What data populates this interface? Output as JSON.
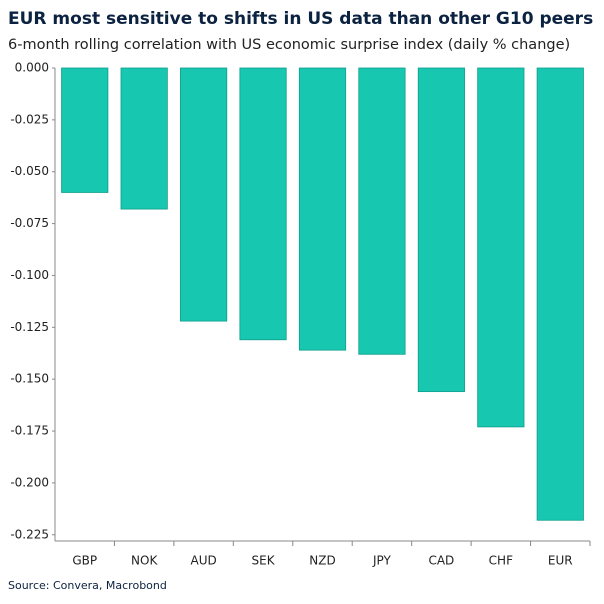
{
  "chart_data": {
    "type": "bar",
    "title": "EUR most sensitive to shifts in US data than other G10 peers",
    "subtitle": "6-month rolling correlation with US economic surprise index (daily % change)",
    "source": "Source: Convera, Macrobond",
    "categories": [
      "GBP",
      "NOK",
      "AUD",
      "SEK",
      "NZD",
      "JPY",
      "CAD",
      "CHF",
      "EUR"
    ],
    "values": [
      -0.06,
      -0.068,
      -0.122,
      -0.131,
      -0.136,
      -0.138,
      -0.156,
      -0.173,
      -0.218
    ],
    "color": "#17c7b0",
    "ylim": [
      -0.228,
      0
    ],
    "yticks": [
      {
        "value": 0,
        "label": "0.000"
      },
      {
        "value": -0.025,
        "label": "-0.025"
      },
      {
        "value": -0.05,
        "label": "-0.050"
      },
      {
        "value": -0.075,
        "label": "-0.075"
      },
      {
        "value": -0.1,
        "label": "-0.100"
      },
      {
        "value": -0.125,
        "label": "-0.125"
      },
      {
        "value": -0.15,
        "label": "-0.150"
      },
      {
        "value": -0.175,
        "label": "-0.175"
      },
      {
        "value": -0.2,
        "label": "-0.200"
      },
      {
        "value": -0.225,
        "label": "-0.225"
      }
    ],
    "grid": false
  }
}
